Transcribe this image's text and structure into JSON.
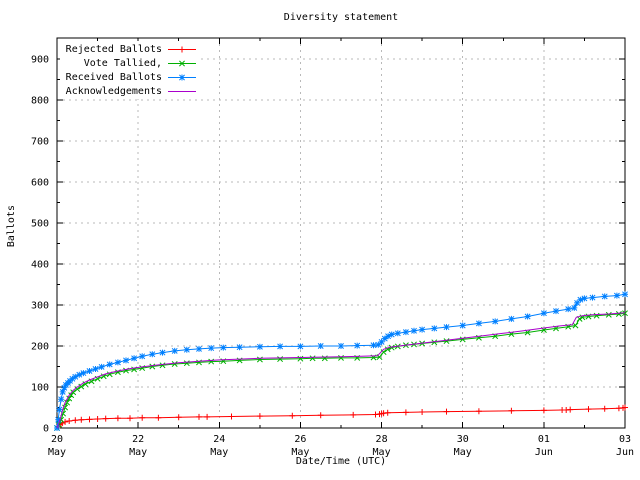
{
  "chart_data": {
    "type": "line",
    "title": "Diversity statement",
    "xlabel": "Date/Time (UTC)",
    "ylabel": "Ballots",
    "x_unit": "days from first x tick (20 May)",
    "xlim": [
      0,
      14
    ],
    "ylim": [
      0,
      950
    ],
    "grid": true,
    "legend_position": "top-left",
    "colors": {
      "grid": "#b9b9b9",
      "axis": "#000000"
    },
    "yticks": [
      0,
      100,
      200,
      300,
      400,
      500,
      600,
      700,
      800,
      900
    ],
    "xticks": [
      {
        "pos": 0,
        "day": "20",
        "month": "May"
      },
      {
        "pos": 2,
        "day": "22",
        "month": "May"
      },
      {
        "pos": 4,
        "day": "24",
        "month": "May"
      },
      {
        "pos": 6,
        "day": "26",
        "month": "May"
      },
      {
        "pos": 8,
        "day": "28",
        "month": "May"
      },
      {
        "pos": 10,
        "day": "30",
        "month": "May"
      },
      {
        "pos": 12,
        "day": "01",
        "month": "Jun"
      },
      {
        "pos": 14,
        "day": "03",
        "month": "Jun"
      }
    ],
    "series": [
      {
        "name": "Rejected Ballots",
        "color": "#ff0000",
        "marker": "plus",
        "x": [
          0,
          0.04,
          0.08,
          0.13,
          0.2,
          0.3,
          0.45,
          0.6,
          0.8,
          1.0,
          1.2,
          1.5,
          1.8,
          2.1,
          2.5,
          3.0,
          3.5,
          3.7,
          4.3,
          5.0,
          5.8,
          6.5,
          7.3,
          7.85,
          7.95,
          8.0,
          8.05,
          8.15,
          8.6,
          9.0,
          9.6,
          10.4,
          11.2,
          12.0,
          12.45,
          12.55,
          12.65,
          13.1,
          13.5,
          13.85,
          13.95,
          14.0
        ],
        "y": [
          0,
          4,
          8,
          12,
          15,
          17,
          19,
          20,
          21,
          22,
          23,
          24,
          24,
          25,
          25,
          26,
          27,
          27,
          28,
          29,
          30,
          31,
          32,
          33,
          34,
          35,
          36,
          37,
          38,
          39,
          40,
          41,
          42,
          43,
          44,
          44,
          45,
          46,
          47,
          48,
          49,
          50
        ]
      },
      {
        "name": "Vote Tallied,",
        "color": "#00b000",
        "marker": "cross",
        "x": [
          0,
          0.05,
          0.1,
          0.15,
          0.2,
          0.25,
          0.3,
          0.35,
          0.4,
          0.5,
          0.6,
          0.7,
          0.85,
          1.0,
          1.15,
          1.3,
          1.5,
          1.7,
          1.9,
          2.1,
          2.35,
          2.6,
          2.9,
          3.2,
          3.5,
          3.8,
          4.1,
          4.5,
          5.0,
          5.5,
          6.0,
          6.3,
          6.6,
          7.0,
          7.4,
          7.8,
          7.95,
          8.05,
          8.15,
          8.25,
          8.4,
          8.6,
          8.8,
          9.0,
          9.3,
          9.6,
          10.0,
          10.4,
          10.8,
          11.2,
          11.6,
          12.0,
          12.3,
          12.6,
          12.78,
          12.88,
          12.95,
          13.1,
          13.3,
          13.6,
          13.85,
          14.0
        ],
        "y": [
          0,
          8,
          20,
          35,
          50,
          62,
          72,
          80,
          87,
          95,
          101,
          107,
          114,
          120,
          126,
          131,
          136,
          140,
          143,
          146,
          150,
          153,
          156,
          158,
          160,
          162,
          163,
          165,
          167,
          168,
          169,
          170,
          170,
          171,
          171,
          172,
          173,
          185,
          192,
          196,
          199,
          202,
          204,
          206,
          209,
          212,
          216,
          220,
          224,
          229,
          233,
          239,
          243,
          247,
          250,
          266,
          270,
          272,
          274,
          276,
          278,
          280
        ]
      },
      {
        "name": "Received Ballots",
        "color": "#0080ff",
        "marker": "star",
        "x": [
          0,
          0.03,
          0.06,
          0.1,
          0.14,
          0.18,
          0.22,
          0.27,
          0.32,
          0.38,
          0.45,
          0.55,
          0.65,
          0.8,
          0.95,
          1.1,
          1.3,
          1.5,
          1.7,
          1.9,
          2.1,
          2.35,
          2.6,
          2.9,
          3.2,
          3.5,
          3.8,
          4.1,
          4.5,
          5.0,
          5.5,
          6.0,
          6.5,
          7.0,
          7.4,
          7.8,
          7.92,
          8.0,
          8.08,
          8.16,
          8.25,
          8.4,
          8.6,
          8.8,
          9.0,
          9.3,
          9.6,
          10.0,
          10.4,
          10.8,
          11.2,
          11.6,
          12.0,
          12.3,
          12.6,
          12.75,
          12.82,
          12.9,
          13.0,
          13.2,
          13.5,
          13.8,
          14.0
        ],
        "y": [
          0,
          20,
          45,
          70,
          88,
          98,
          105,
          110,
          115,
          120,
          125,
          130,
          134,
          139,
          144,
          149,
          155,
          160,
          165,
          170,
          175,
          180,
          184,
          188,
          191,
          193,
          195,
          196,
          197,
          198,
          199,
          199,
          200,
          200,
          201,
          202,
          203,
          210,
          218,
          224,
          228,
          231,
          234,
          237,
          240,
          243,
          246,
          250,
          255,
          260,
          266,
          272,
          280,
          285,
          290,
          293,
          305,
          313,
          316,
          318,
          321,
          323,
          326
        ]
      },
      {
        "name": "Acknowledgements",
        "color": "#aa00cc",
        "marker": "none",
        "x": [
          0,
          0.05,
          0.1,
          0.15,
          0.2,
          0.3,
          0.4,
          0.5,
          0.65,
          0.8,
          1.0,
          1.2,
          1.5,
          1.8,
          2.1,
          2.5,
          3.0,
          3.5,
          4.0,
          4.5,
          5.0,
          5.5,
          6.0,
          6.5,
          7.0,
          7.5,
          7.9,
          8.05,
          8.2,
          8.5,
          9.0,
          9.5,
          10.0,
          10.5,
          11.0,
          11.5,
          12.0,
          12.4,
          12.7,
          12.8,
          12.95,
          13.2,
          13.6,
          14.0
        ],
        "y": [
          0,
          12,
          30,
          48,
          62,
          80,
          92,
          100,
          110,
          117,
          125,
          132,
          139,
          145,
          149,
          154,
          159,
          163,
          166,
          168,
          170,
          171,
          172,
          173,
          174,
          175,
          176,
          192,
          197,
          201,
          207,
          213,
          219,
          225,
          231,
          237,
          244,
          249,
          252,
          270,
          274,
          276,
          278,
          281
        ]
      }
    ]
  }
}
